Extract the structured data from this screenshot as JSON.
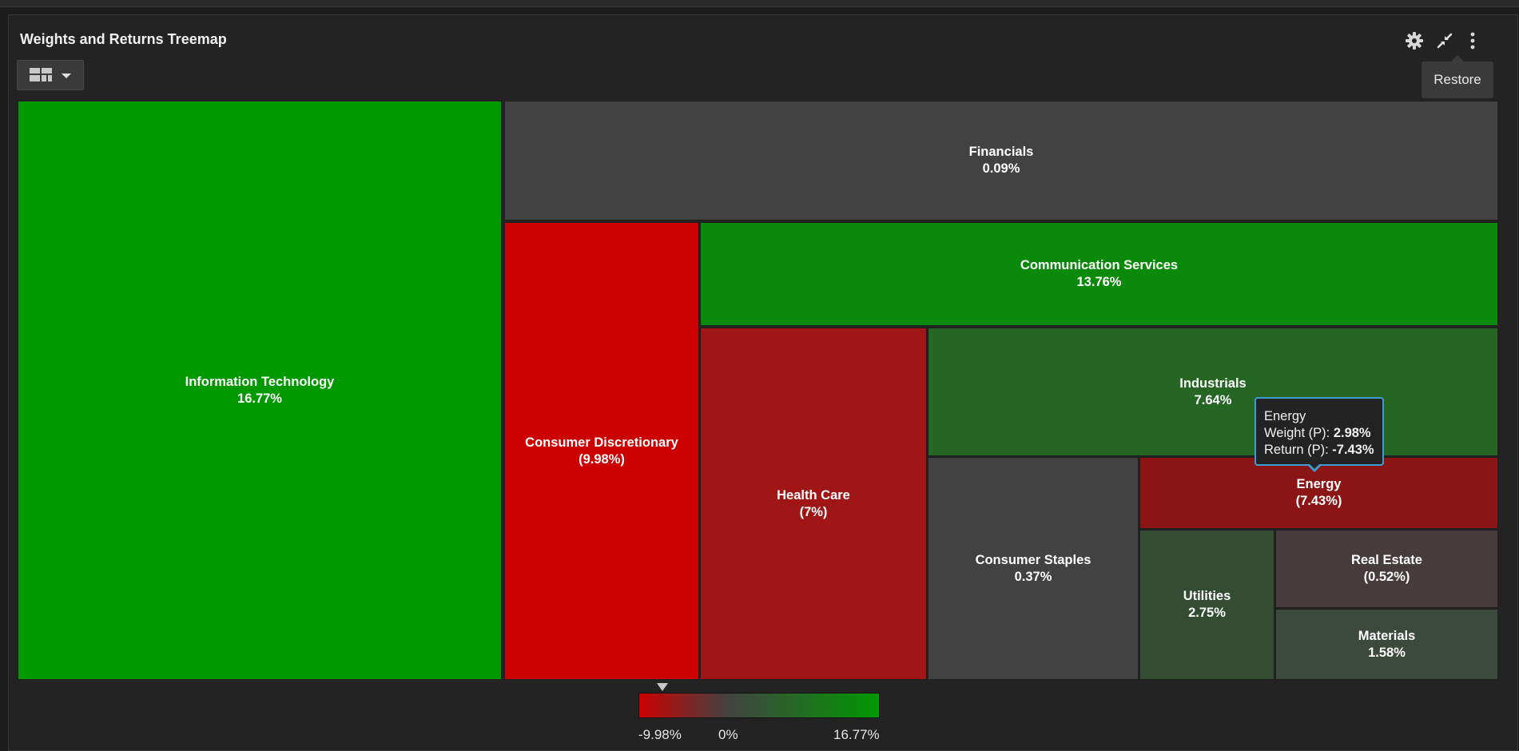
{
  "panel": {
    "title": "Weights and Returns Treemap",
    "restore_tooltip": "Restore"
  },
  "icons": {
    "settings": "gear-icon",
    "restore": "compress-arrows-icon",
    "more": "vertical-ellipsis-icon",
    "view": "treemap-grid-icon",
    "dropdown": "caret-down-icon"
  },
  "colors": {
    "positive": "#009900",
    "negative": "#cc0000",
    "neutral": "#424242"
  },
  "chart_data": {
    "type": "treemap",
    "tiles": [
      {
        "name": "Information Technology",
        "label": "16.77%",
        "return": 16.77,
        "color": "#009900"
      },
      {
        "name": "Financials",
        "label": "0.09%",
        "return": 0.09,
        "color": "#424242"
      },
      {
        "name": "Consumer Discretionary",
        "label": "(9.98%)",
        "return": -9.98,
        "color": "#cc0000"
      },
      {
        "name": "Communication Services",
        "label": "13.76%",
        "return": 13.76,
        "color": "#0b890b"
      },
      {
        "name": "Health Care",
        "label": "(7%)",
        "return": -7.0,
        "color": "#a01515"
      },
      {
        "name": "Industrials",
        "label": "7.64%",
        "return": 7.64,
        "color": "#256625"
      },
      {
        "name": "Consumer Staples",
        "label": "0.37%",
        "return": 0.37,
        "color": "#424242"
      },
      {
        "name": "Energy",
        "label": "(7.43%)",
        "return": -7.43,
        "color": "#8b1515"
      },
      {
        "name": "Utilities",
        "label": "2.75%",
        "return": 2.75,
        "color": "#334d33"
      },
      {
        "name": "Real Estate",
        "label": "(0.52%)",
        "return": -0.52,
        "color": "#473b3b"
      },
      {
        "name": "Materials",
        "label": "1.58%",
        "return": 1.58,
        "color": "#3c4a3c"
      }
    ],
    "tooltip": {
      "title": "Energy",
      "weight_label": "Weight (P):",
      "weight_value": "2.98%",
      "return_label": "Return (P):",
      "return_value": "-7.43%"
    },
    "legend": {
      "min_label": "-9.98%",
      "mid_label": "0%",
      "max_label": "16.77%",
      "min": -9.98,
      "mid": 0,
      "max": 16.77,
      "marker_value": -9.98
    }
  }
}
